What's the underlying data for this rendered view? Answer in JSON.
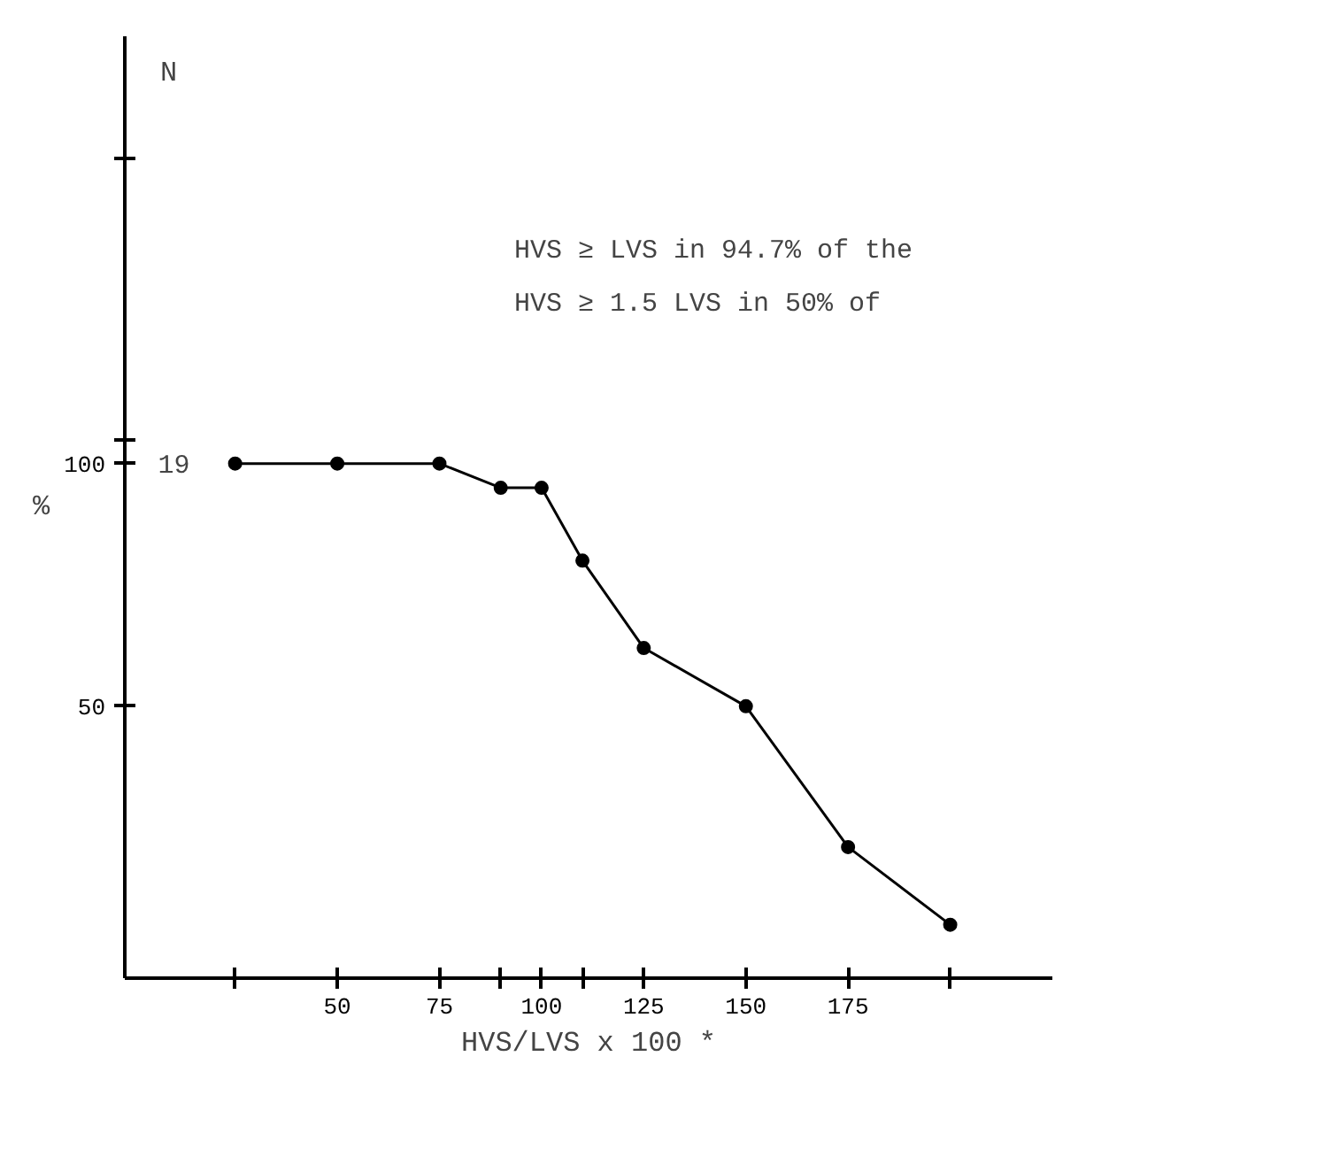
{
  "chart_data": {
    "type": "line",
    "xlabel": "HVS/LVS x 100 *",
    "ylabel": "%",
    "y2label": "N",
    "x": [
      25,
      50,
      75,
      90,
      100,
      110,
      125,
      150,
      175,
      200
    ],
    "series": [
      {
        "color": "#000000",
        "values": [
          100,
          100,
          100,
          95,
          95,
          80,
          62,
          50,
          21,
          5
        ]
      }
    ],
    "xlim": [
      -2,
      225
    ],
    "ylim": [
      -6,
      188
    ],
    "xticks": [
      {
        "value": 25,
        "label": null
      },
      50,
      75,
      {
        "value": 90,
        "label": null
      },
      {
        "value": 100,
        "label": "100"
      },
      {
        "value": 110,
        "label": null
      },
      125,
      150,
      175,
      {
        "value": 200,
        "label": null
      }
    ],
    "yticks": [
      50,
      100,
      {
        "value": 105,
        "label": null
      },
      {
        "value": 163,
        "label": null
      }
    ],
    "annotations": [
      {
        "text": "19",
        "x": 10,
        "y": 100
      },
      "HVS ≥ LVS in 94.7% of the",
      "HVS ≥ 1.5 LVS in 50% of"
    ],
    "marker": "circle",
    "line_style": "solid",
    "grid": false
  }
}
